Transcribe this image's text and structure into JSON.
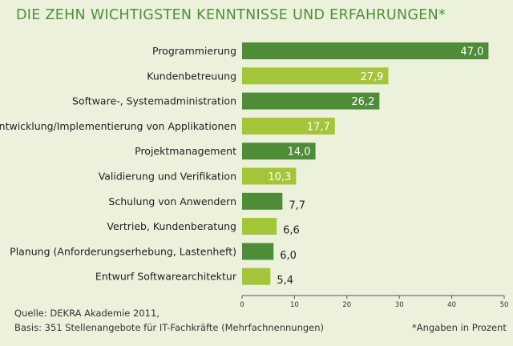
{
  "title": "DIE ZEHN WICHTIGSTEN KENNTNISSE UND ERFAHRUNGEN*",
  "colors": {
    "background": "#ecf1dc",
    "bar_dark": "#4e8c38",
    "bar_light": "#a4c43a",
    "title": "#4f8f3a"
  },
  "chart_data": {
    "type": "bar",
    "orientation": "horizontal",
    "categories": [
      "Programmierung",
      "Kundenbetreuung",
      "Software-, Systemadministration",
      "Entwicklung/Implementierung von Applikationen",
      "Projektmanagement",
      "Validierung und Verifikation",
      "Schulung von Anwendern",
      "Vertrieb, Kundenberatung",
      "Planung (Anforderungserhebung, Lastenheft)",
      "Entwurf Softwarearchitektur"
    ],
    "values": [
      47.0,
      27.9,
      26.2,
      17.7,
      14.0,
      10.3,
      7.7,
      6.6,
      6.0,
      5.4
    ],
    "value_labels": [
      "47,0",
      "27,9",
      "26,2",
      "17,7",
      "14,0",
      "10,3",
      "7,7",
      "6,6",
      "6,0",
      "5,4"
    ],
    "bar_color_pattern": [
      "dark",
      "light",
      "dark",
      "light",
      "dark",
      "light",
      "dark",
      "light",
      "dark",
      "light"
    ],
    "xlim": [
      0,
      50
    ],
    "xticks": [
      "0",
      "10",
      "20",
      "30",
      "40",
      "50"
    ],
    "grid": false,
    "legend": "none"
  },
  "footer": {
    "source": "Quelle: DEKRA Akademie 2011,",
    "basis": "Basis: 351 Stellenangebote für IT-Fachkräfte (Mehrfachnennungen)",
    "note": "*Angaben in Prozent"
  }
}
